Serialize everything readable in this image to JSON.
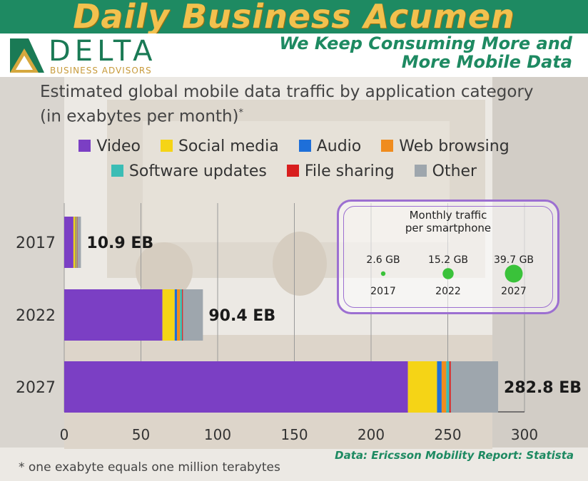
{
  "header": {
    "brand_title": "Daily Business Acumen",
    "logo_word": "DELTA",
    "logo_sub": "BUSINESS ADVISORS",
    "headline_line1": "We Keep Consuming More and",
    "headline_line2": "More Mobile Data"
  },
  "colors": {
    "header_green": "#1e8a62",
    "title_gold": "#f2c14e"
  },
  "chart_data": {
    "type": "bar",
    "orientation": "horizontal",
    "stacked": true,
    "title": "Estimated global mobile data traffic by application category",
    "subtitle": "(in exabytes per month)",
    "subtitle_mark": "*",
    "categories": [
      "2017",
      "2022",
      "2027"
    ],
    "totals_labels": [
      "10.9 EB",
      "90.4 EB",
      "282.8 EB"
    ],
    "xlim": [
      0,
      300
    ],
    "x_ticks": [
      "0",
      "50",
      "100",
      "150",
      "200",
      "250",
      "300"
    ],
    "grid": true,
    "legend_position": "top",
    "series": [
      {
        "name": "Video",
        "color": "#7b3fc4",
        "values": [
          6.0,
          64.0,
          224.0
        ]
      },
      {
        "name": "Social media",
        "color": "#f5d416",
        "values": [
          1.2,
          8.0,
          19.0
        ]
      },
      {
        "name": "Audio",
        "color": "#1e6fd9",
        "values": [
          0.3,
          1.5,
          3.0
        ]
      },
      {
        "name": "Web browsing",
        "color": "#f08c1e",
        "values": [
          0.6,
          2.0,
          3.0
        ]
      },
      {
        "name": "Software updates",
        "color": "#3bbdb5",
        "values": [
          0.3,
          1.3,
          2.0
        ]
      },
      {
        "name": "File sharing",
        "color": "#d81e1e",
        "values": [
          0.2,
          0.6,
          1.0
        ]
      },
      {
        "name": "Other",
        "color": "#9ea6ad",
        "values": [
          2.3,
          13.0,
          30.8
        ]
      }
    ]
  },
  "inset": {
    "title_line1": "Monthly traffic",
    "title_line2": "per smartphone",
    "items": [
      {
        "year": "2017",
        "label": "2.6 GB",
        "value": 2.6
      },
      {
        "year": "2022",
        "label": "15.2 GB",
        "value": 15.2
      },
      {
        "year": "2027",
        "label": "39.7 GB",
        "value": 39.7
      }
    ],
    "bubble_color": "#3ac23a"
  },
  "credit": "Data: Ericsson Mobility Report: Statista",
  "footnote": "* one exabyte equals one million terabytes"
}
